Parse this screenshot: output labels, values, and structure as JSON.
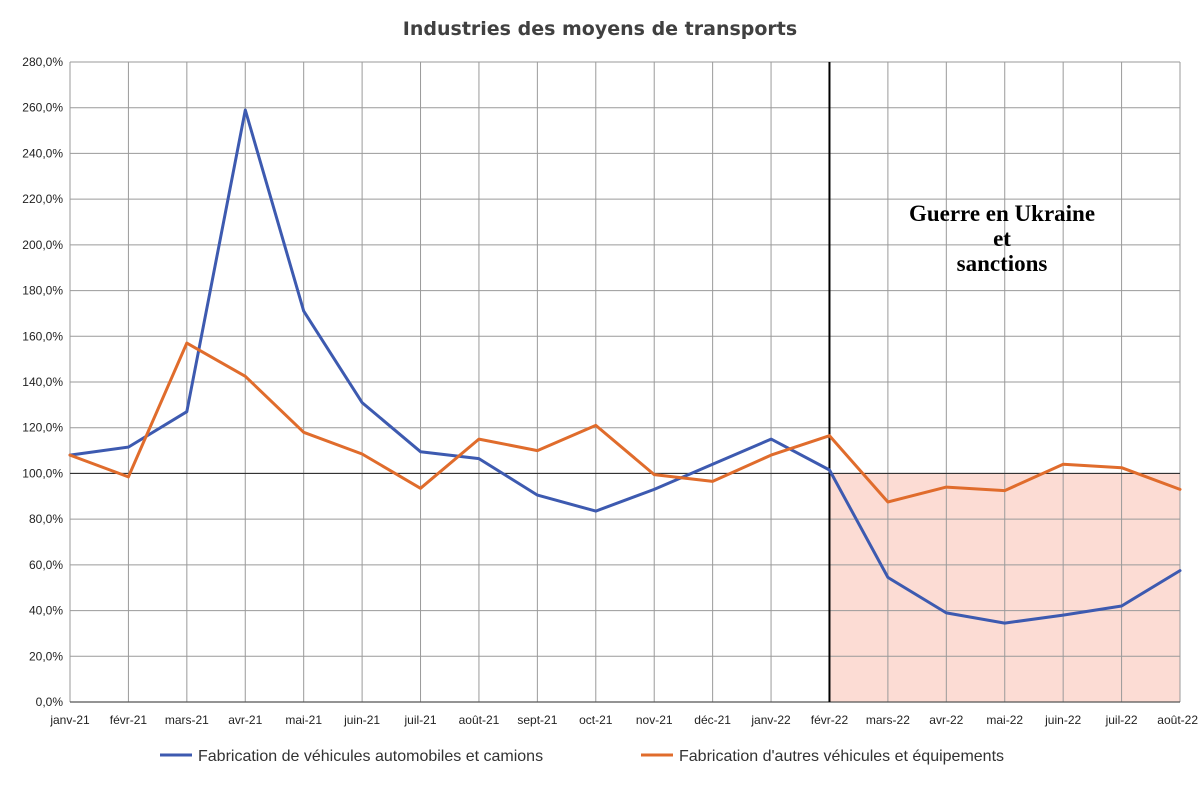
{
  "chart_data": {
    "type": "line",
    "title": "Industries des moyens de transports",
    "xlabel": "",
    "ylabel": "",
    "categories": [
      "janv-21",
      "févr-21",
      "mars-21",
      "avr-21",
      "mai-21",
      "juin-21",
      "juil-21",
      "août-21",
      "sept-21",
      "oct-21",
      "nov-21",
      "déc-21",
      "janv-22",
      "févr-22",
      "mars-22",
      "avr-22",
      "mai-22",
      "juin-22",
      "juil-22",
      "août-22"
    ],
    "yticks": [
      "0,0%",
      "20,0%",
      "40,0%",
      "60,0%",
      "80,0%",
      "100,0%",
      "120,0%",
      "140,0%",
      "160,0%",
      "180,0%",
      "200,0%",
      "220,0%",
      "240,0%",
      "260,0%",
      "280,0%"
    ],
    "ylim": [
      0,
      280
    ],
    "grid": true,
    "legend_position": "bottom",
    "series": [
      {
        "name": "Fabrication de véhicules automobiles et camions",
        "color": "#3d5ab0",
        "values": [
          108,
          111.5,
          127,
          259,
          171,
          131,
          109.5,
          106.5,
          90.5,
          83.5,
          93,
          104,
          115,
          101.5,
          54.5,
          39,
          34.5,
          38,
          42,
          57.5
        ]
      },
      {
        "name": "Fabrication d'autres véhicules et équipements",
        "color": "#e06c2c",
        "values": [
          108,
          98.5,
          157,
          142.5,
          118,
          108.5,
          93.5,
          115,
          110,
          121,
          99.5,
          96.5,
          108,
          116.5,
          87.5,
          94,
          92.5,
          104,
          102.5,
          93
        ]
      }
    ],
    "reference_line_value": 100,
    "event": {
      "start_category": "févr-22",
      "end_category": "août-22",
      "shade_to_value": 100,
      "shade_color": "#fcdcd4",
      "label_lines": [
        "Guerre en Ukraine",
        "et",
        "sanctions"
      ]
    }
  }
}
